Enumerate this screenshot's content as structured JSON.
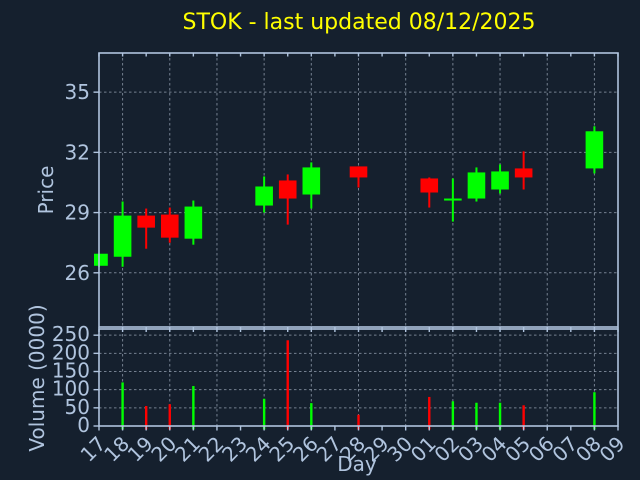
{
  "title": "STOK - last updated 08/12/2025",
  "colors": {
    "background": "#15202e",
    "up": "#00ff00",
    "down": "#ff0000",
    "axis": "#b0c4de",
    "grid": "#c3d0e0",
    "title": "#ffff00"
  },
  "chart_data": {
    "type": "candlestick",
    "title": "STOK - last updated 08/12/2025",
    "xlabel": "Day",
    "ylabel": "Price",
    "ylabel2": "Volume (0000)",
    "legend": "none",
    "grid": true,
    "x_categories": [
      "17",
      "18",
      "19",
      "20",
      "21",
      "22",
      "23",
      "24",
      "25",
      "26",
      "27",
      "28",
      "29",
      "30",
      "01",
      "02",
      "03",
      "04",
      "05",
      "06",
      "07",
      "08",
      "09"
    ],
    "vgrid_days": [
      "18",
      "20",
      "22",
      "24",
      "26",
      "28",
      "30",
      "02",
      "04",
      "06",
      "08"
    ],
    "price_axis": {
      "ticks": [
        26,
        29,
        32,
        35
      ],
      "ylim": [
        23.3,
        36.95
      ]
    },
    "volume_axis": {
      "ticks": [
        0,
        50,
        100,
        150,
        200,
        250
      ],
      "ylim": [
        0,
        267
      ]
    },
    "candles": [
      {
        "day": "17",
        "open": 26.35,
        "high": 26.95,
        "low": 26.3,
        "close": 26.95,
        "volume": 0
      },
      {
        "day": "18",
        "open": 26.8,
        "high": 29.55,
        "low": 26.3,
        "close": 28.85,
        "volume": 120
      },
      {
        "day": "19",
        "open": 28.85,
        "high": 29.2,
        "low": 27.2,
        "close": 28.25,
        "volume": 55
      },
      {
        "day": "20",
        "open": 28.9,
        "high": 29.25,
        "low": 27.5,
        "close": 27.75,
        "volume": 60
      },
      {
        "day": "21",
        "open": 27.7,
        "high": 29.6,
        "low": 27.4,
        "close": 29.3,
        "volume": 110
      },
      {
        "day": "24",
        "open": 29.35,
        "high": 30.8,
        "low": 29.0,
        "close": 30.3,
        "volume": 75
      },
      {
        "day": "25",
        "open": 30.6,
        "high": 30.9,
        "low": 28.4,
        "close": 29.7,
        "volume": 236
      },
      {
        "day": "26",
        "open": 29.9,
        "high": 31.5,
        "low": 29.2,
        "close": 31.25,
        "volume": 63
      },
      {
        "day": "28",
        "open": 31.3,
        "high": 31.3,
        "low": 30.25,
        "close": 30.75,
        "volume": 31
      },
      {
        "day": "01",
        "open": 30.7,
        "high": 30.75,
        "low": 29.25,
        "close": 30.0,
        "volume": 80
      },
      {
        "day": "02",
        "open": 29.6,
        "high": 30.7,
        "low": 28.55,
        "close": 29.7,
        "volume": 68
      },
      {
        "day": "03",
        "open": 29.7,
        "high": 31.25,
        "low": 29.55,
        "close": 31.0,
        "volume": 64
      },
      {
        "day": "04",
        "open": 30.15,
        "high": 31.4,
        "low": 29.95,
        "close": 31.05,
        "volume": 64
      },
      {
        "day": "05",
        "open": 31.2,
        "high": 32.05,
        "low": 30.15,
        "close": 30.75,
        "volume": 57
      },
      {
        "day": "08",
        "open": 31.2,
        "high": 33.3,
        "low": 30.95,
        "close": 33.05,
        "volume": 93
      }
    ]
  }
}
